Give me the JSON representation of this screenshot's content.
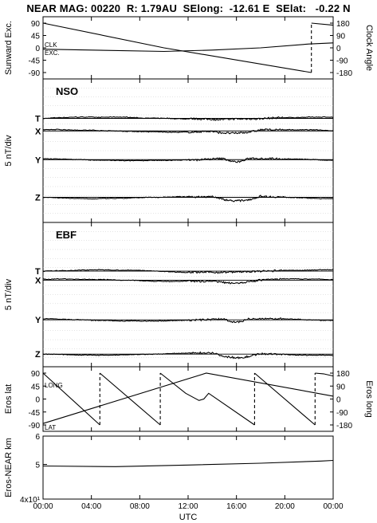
{
  "header": {
    "title": "NEAR MAG: 00220  R: 1.79AU  SElong:  -12.61 E  SElat:   -0.22 N"
  },
  "chart_data": [
    {
      "type": "line",
      "id": "sun-clock",
      "ylabel": "Sunward Exc.",
      "y2label": "Clock Angle",
      "yticks": [
        "90",
        "45",
        "0",
        "-45",
        "-90"
      ],
      "y2ticks": [
        "180",
        "90",
        "0",
        "-90",
        "-180"
      ],
      "ylim": [
        -90,
        90
      ],
      "y2lim": [
        -180,
        180
      ],
      "annotations": [
        "CLK",
        "EXC."
      ],
      "series": [
        {
          "id": "clk",
          "axis": "right",
          "x": [
            0,
            10,
            22.2,
            22.2,
            24
          ],
          "y": [
            180,
            0,
            -180,
            180,
            165
          ]
        },
        {
          "id": "exc",
          "axis": "left",
          "x": [
            0,
            10,
            14,
            18,
            22,
            24
          ],
          "y": [
            -5,
            -13,
            -8,
            0,
            14,
            18
          ]
        }
      ]
    },
    {
      "type": "line",
      "id": "nso",
      "title": "NSO",
      "ylabel": "5 nT/div",
      "components": [
        {
          "label": "T",
          "base": 3.6
        },
        {
          "label": "X",
          "base": 2.2
        },
        {
          "label": "Y",
          "base": -1.0
        },
        {
          "label": "Z",
          "base": -5.2
        }
      ],
      "ylim": [
        -8,
        8
      ]
    },
    {
      "type": "line",
      "id": "ebf",
      "title": "EBF",
      "ylabel": "5 nT/div",
      "components": [
        {
          "label": "T",
          "base": 2.6
        },
        {
          "label": "X",
          "base": 1.6
        },
        {
          "label": "Y",
          "base": -2.8
        },
        {
          "label": "Z",
          "base": -6.6
        }
      ],
      "ylim": [
        -8,
        8
      ]
    },
    {
      "type": "line",
      "id": "eros",
      "ylabel": "Eros lat",
      "y2label": "Eros long",
      "yticks": [
        "90",
        "45",
        "0",
        "-45",
        "-90"
      ],
      "y2ticks": [
        "180",
        "90",
        "0",
        "-90",
        "-180"
      ],
      "ylim": [
        -90,
        90
      ],
      "y2lim": [
        -180,
        180
      ],
      "annotations": [
        "LONG",
        "LAT"
      ],
      "series": [
        {
          "id": "lat",
          "axis": "left",
          "x": [
            0,
            13.5,
            24
          ],
          "y": [
            -85,
            90,
            10
          ]
        },
        {
          "id": "long",
          "axis": "right",
          "x": [
            0,
            4.7,
            4.7,
            9.7,
            9.7,
            11.8,
            12.9,
            13.3,
            13.7,
            17.5,
            17.5,
            22.5,
            22.5,
            23.2,
            24
          ],
          "y": [
            180,
            -180,
            180,
            -180,
            180,
            40,
            -10,
            0,
            40,
            -180,
            180,
            -180,
            180,
            175,
            160
          ]
        }
      ]
    },
    {
      "type": "line",
      "id": "distance",
      "ylabel": "Eros-NEAR km",
      "yticks": [
        "6",
        "5",
        "4x10¹"
      ],
      "ylim": [
        40,
        60
      ],
      "scale": "log",
      "series": [
        {
          "id": "dist",
          "x": [
            0,
            6,
            12,
            18,
            23,
            24
          ],
          "y": [
            49.5,
            49.3,
            49.8,
            50.4,
            51.1,
            51.3
          ]
        }
      ]
    }
  ],
  "xaxis": {
    "label": "UTC",
    "ticks": [
      "00:00",
      "04:00",
      "08:00",
      "12:00",
      "16:00",
      "20:00",
      "00:00"
    ],
    "xlim": [
      0,
      24
    ]
  }
}
